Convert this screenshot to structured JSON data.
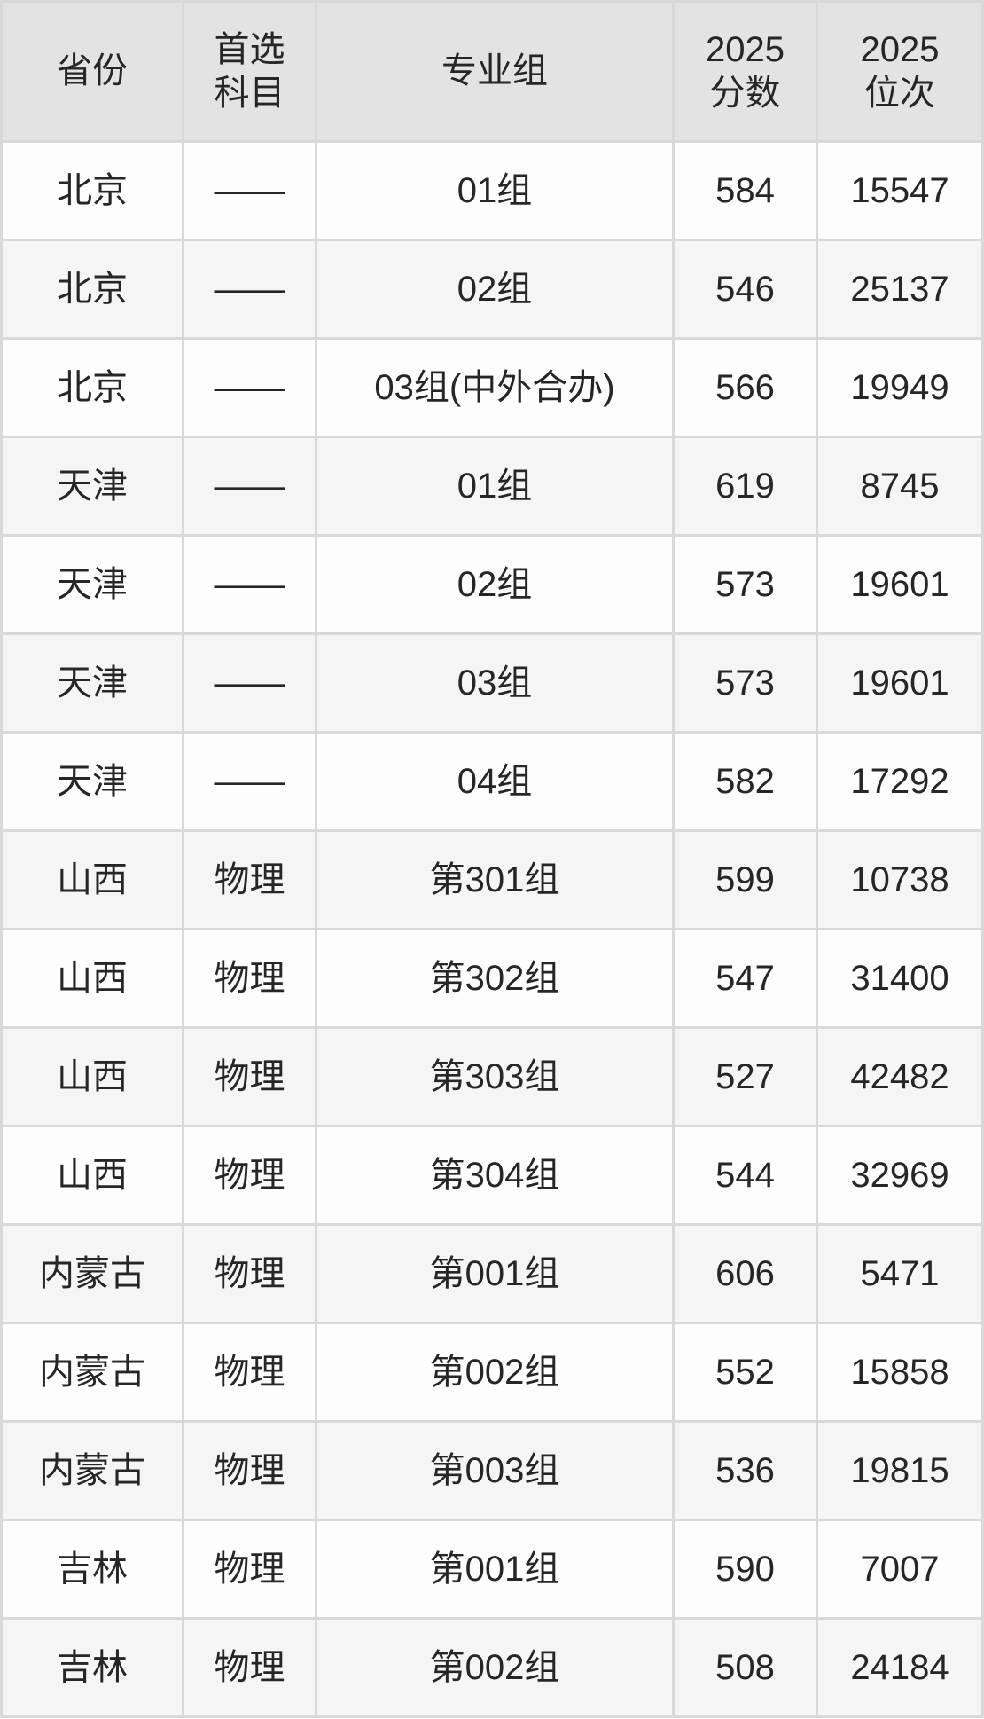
{
  "colors": {
    "header_bg": "#e3e3e3",
    "row_bg": "#fdfdfd",
    "row_alt_bg": "#f5f5f5",
    "grid_line": "#d9d9d9",
    "text": "#262626"
  },
  "table": {
    "headers": {
      "province": "省份",
      "subject": "首选\n科目",
      "group": "专业组",
      "score": "2025\n分数",
      "rank": "2025\n位次"
    },
    "rows": [
      {
        "province": "北京",
        "subject": "——",
        "group": "01组",
        "score": "584",
        "rank": "15547"
      },
      {
        "province": "北京",
        "subject": "——",
        "group": "02组",
        "score": "546",
        "rank": "25137"
      },
      {
        "province": "北京",
        "subject": "——",
        "group": "03组(中外合办)",
        "score": "566",
        "rank": "19949"
      },
      {
        "province": "天津",
        "subject": "——",
        "group": "01组",
        "score": "619",
        "rank": "8745"
      },
      {
        "province": "天津",
        "subject": "——",
        "group": "02组",
        "score": "573",
        "rank": "19601"
      },
      {
        "province": "天津",
        "subject": "——",
        "group": "03组",
        "score": "573",
        "rank": "19601"
      },
      {
        "province": "天津",
        "subject": "——",
        "group": "04组",
        "score": "582",
        "rank": "17292"
      },
      {
        "province": "山西",
        "subject": "物理",
        "group": "第301组",
        "score": "599",
        "rank": "10738"
      },
      {
        "province": "山西",
        "subject": "物理",
        "group": "第302组",
        "score": "547",
        "rank": "31400"
      },
      {
        "province": "山西",
        "subject": "物理",
        "group": "第303组",
        "score": "527",
        "rank": "42482"
      },
      {
        "province": "山西",
        "subject": "物理",
        "group": "第304组",
        "score": "544",
        "rank": "32969"
      },
      {
        "province": "内蒙古",
        "subject": "物理",
        "group": "第001组",
        "score": "606",
        "rank": "5471"
      },
      {
        "province": "内蒙古",
        "subject": "物理",
        "group": "第002组",
        "score": "552",
        "rank": "15858"
      },
      {
        "province": "内蒙古",
        "subject": "物理",
        "group": "第003组",
        "score": "536",
        "rank": "19815"
      },
      {
        "province": "吉林",
        "subject": "物理",
        "group": "第001组",
        "score": "590",
        "rank": "7007"
      },
      {
        "province": "吉林",
        "subject": "物理",
        "group": "第002组",
        "score": "508",
        "rank": "24184"
      }
    ]
  }
}
